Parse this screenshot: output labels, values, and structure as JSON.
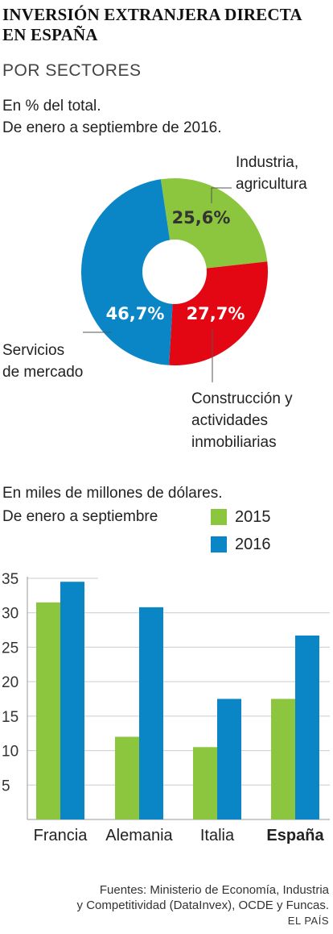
{
  "header": {
    "title": "INVERSIÓN EXTRANJERA DIRECTA EN ESPAÑA",
    "subtitle": "POR SECTORES"
  },
  "chart_data": [
    {
      "type": "pie",
      "note_line1": "En % del total.",
      "note_line2": "De enero a septiembre de 2016.",
      "slices": [
        {
          "name": "Industria, agricultura",
          "name_line1": "Industria,",
          "name_line2": "agricultura",
          "value": 25.6,
          "label": "25,6%",
          "color": "#8cc63f",
          "label_color": "#333333"
        },
        {
          "name": "Construcción y actividades inmobiliarias",
          "name_line1": "Construcción y",
          "name_line2": "actividades",
          "name_line3": "inmobiliarias",
          "value": 27.7,
          "label": "27,7%",
          "color": "#e30613",
          "label_color": "#ffffff"
        },
        {
          "name": "Servicios de mercado",
          "name_line1": "Servicios",
          "name_line2": "de mercado",
          "value": 46.7,
          "label": "46,7%",
          "color": "#0a86c6",
          "label_color": "#ffffff"
        }
      ]
    },
    {
      "type": "bar",
      "note_line1": "En miles de millones de dólares.",
      "note_line2": "De enero a septiembre",
      "categories": [
        "Francia",
        "Alemania",
        "Italia",
        "España"
      ],
      "highlight_category": "España",
      "series": [
        {
          "name": "2015",
          "color": "#8cc63f",
          "values": [
            31.5,
            12.0,
            10.5,
            17.5
          ]
        },
        {
          "name": "2016",
          "color": "#0a86c6",
          "values": [
            34.5,
            30.8,
            17.5,
            26.7
          ]
        }
      ],
      "yticks": [
        5,
        10,
        15,
        20,
        25,
        30,
        35
      ],
      "ylim": [
        0,
        35
      ],
      "grid": true
    }
  ],
  "footer": {
    "sources_line1": "Fuentes: Ministerio de Economía, Industria",
    "sources_line2": "y Competitividad (DataInvex), OCDE y Funcas.",
    "credit": "EL PAÍS"
  }
}
